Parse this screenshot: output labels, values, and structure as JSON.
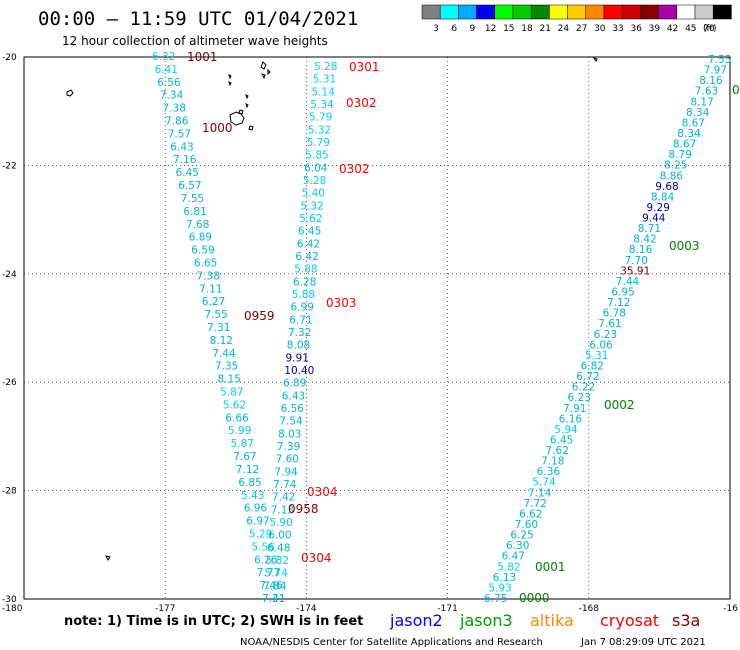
{
  "header": {
    "title": "00:00 – 11:59 UTC 01/04/2021",
    "subtitle": "12 hour collection of altimeter wave heights"
  },
  "colorbar": {
    "unit": "(ft)",
    "swatches": [
      {
        "color": "#808080",
        "label": "3"
      },
      {
        "color": "#00ffff",
        "label": "6"
      },
      {
        "color": "#00aaff",
        "label": "9"
      },
      {
        "color": "#0000ff",
        "label": "12"
      },
      {
        "color": "#00ff00",
        "label": "15"
      },
      {
        "color": "#00cc00",
        "label": "18"
      },
      {
        "color": "#008800",
        "label": "21"
      },
      {
        "color": "#ffff00",
        "label": "24"
      },
      {
        "color": "#ffcc00",
        "label": "27"
      },
      {
        "color": "#ff8800",
        "label": "30"
      },
      {
        "color": "#ff0000",
        "label": "33"
      },
      {
        "color": "#cc0000",
        "label": "36"
      },
      {
        "color": "#880000",
        "label": "39"
      },
      {
        "color": "#aa00aa",
        "label": "42"
      },
      {
        "color": "#ffffff",
        "label": "45"
      },
      {
        "color": "#cccccc",
        "label": "70"
      },
      {
        "color": "#000000",
        "label": ""
      }
    ]
  },
  "colors": {
    "cyan_text": "#00b4d8",
    "light_cyan_text": "#00d0f0",
    "navy_text": "#0000a0",
    "red_text": "#ff0000",
    "darkred_text": "#800000",
    "green_text": "#008000",
    "orange_text": "#ff8800",
    "jason2": "#0000ff",
    "jason3": "#00a000",
    "altika": "#ff8800",
    "cryosat": "#ff0000",
    "s3a": "#800000"
  },
  "axes": {
    "lat_labels": [
      {
        "lat": -20,
        "label": "-20"
      },
      {
        "lat": -22,
        "label": "-22"
      },
      {
        "lat": -24,
        "label": "-24"
      },
      {
        "lat": -26,
        "label": "-26"
      },
      {
        "lat": -28,
        "label": "-28"
      },
      {
        "lat": -30,
        "label": "-30"
      }
    ],
    "lon_labels": [
      {
        "lon": -180,
        "label": "-180"
      },
      {
        "lon": -177,
        "label": "-177"
      },
      {
        "lon": -174,
        "label": "-174"
      },
      {
        "lon": -171,
        "label": "-171"
      },
      {
        "lon": -168,
        "label": "-168"
      },
      {
        "lon": -165,
        "label": "-16"
      }
    ],
    "lat_range": [
      -30,
      -20
    ],
    "lon_range": [
      -180,
      -165
    ],
    "grid": "dotted"
  },
  "tracks": {
    "track_a": [
      {
        "v": "6.32",
        "c": "light"
      },
      {
        "v": "6.41",
        "c": "light"
      },
      {
        "v": "6.56",
        "c": "cyan"
      },
      {
        "v": "7.34",
        "c": "cyan"
      },
      {
        "v": "7.38",
        "c": "cyan"
      },
      {
        "v": "7.86",
        "c": "cyan"
      },
      {
        "v": "7.57",
        "c": "cyan"
      },
      {
        "v": "6.43",
        "c": "cyan"
      },
      {
        "v": "7.16",
        "c": "cyan"
      },
      {
        "v": "6.45",
        "c": "cyan"
      },
      {
        "v": "6.57",
        "c": "cyan"
      },
      {
        "v": "7.55",
        "c": "cyan"
      },
      {
        "v": "6.81",
        "c": "cyan"
      },
      {
        "v": "7.68",
        "c": "cyan"
      },
      {
        "v": "6.89",
        "c": "cyan"
      },
      {
        "v": "6.59",
        "c": "cyan"
      },
      {
        "v": "6.65",
        "c": "cyan"
      },
      {
        "v": "7.38",
        "c": "cyan"
      },
      {
        "v": "7.11",
        "c": "cyan"
      },
      {
        "v": "6.27",
        "c": "cyan"
      },
      {
        "v": "7.55",
        "c": "cyan"
      },
      {
        "v": "7.31",
        "c": "cyan"
      },
      {
        "v": "8.12",
        "c": "cyan"
      },
      {
        "v": "7.44",
        "c": "cyan"
      },
      {
        "v": "7.35",
        "c": "cyan"
      },
      {
        "v": "8.15",
        "c": "cyan"
      },
      {
        "v": "5.87",
        "c": "light"
      },
      {
        "v": "5.62",
        "c": "light"
      },
      {
        "v": "6.66",
        "c": "cyan"
      },
      {
        "v": "5.99",
        "c": "light"
      },
      {
        "v": "5.87",
        "c": "light"
      },
      {
        "v": "7.67",
        "c": "cyan"
      },
      {
        "v": "7.12",
        "c": "cyan"
      },
      {
        "v": "6.85",
        "c": "cyan"
      },
      {
        "v": "5.43",
        "c": "light"
      },
      {
        "v": "6.96",
        "c": "cyan"
      },
      {
        "v": "6.97",
        "c": "cyan"
      },
      {
        "v": "5.29",
        "c": "light"
      },
      {
        "v": "5.56",
        "c": "light"
      },
      {
        "v": "6.26",
        "c": "cyan"
      },
      {
        "v": "7.77",
        "c": "cyan"
      },
      {
        "v": "7.46",
        "c": "cyan"
      },
      {
        "v": "7.41",
        "c": "cyan"
      }
    ],
    "track_b": [
      {
        "v": "5.28",
        "c": "light"
      },
      {
        "v": "5.31",
        "c": "light"
      },
      {
        "v": "5.14",
        "c": "light"
      },
      {
        "v": "5.34",
        "c": "light"
      },
      {
        "v": "5.79",
        "c": "light"
      },
      {
        "v": "5.32",
        "c": "light"
      },
      {
        "v": "5.79",
        "c": "light"
      },
      {
        "v": "5.85",
        "c": "light"
      },
      {
        "v": "6.04",
        "c": "cyan"
      },
      {
        "v": "5.28",
        "c": "light"
      },
      {
        "v": "5.40",
        "c": "light"
      },
      {
        "v": "5.32",
        "c": "light"
      },
      {
        "v": "5.62",
        "c": "light"
      },
      {
        "v": "6.45",
        "c": "cyan"
      },
      {
        "v": "6.42",
        "c": "cyan"
      },
      {
        "v": "6.42",
        "c": "cyan"
      },
      {
        "v": "5.88",
        "c": "light"
      },
      {
        "v": "6.28",
        "c": "cyan"
      },
      {
        "v": "5.88",
        "c": "light"
      },
      {
        "v": "6.99",
        "c": "cyan"
      },
      {
        "v": "6.71",
        "c": "cyan"
      },
      {
        "v": "7.32",
        "c": "cyan"
      },
      {
        "v": "8.08",
        "c": "cyan"
      },
      {
        "v": "9.91",
        "c": "navy"
      },
      {
        "v": "10.40",
        "c": "navy"
      },
      {
        "v": "6.89",
        "c": "cyan"
      },
      {
        "v": "6.43",
        "c": "cyan"
      },
      {
        "v": "6.56",
        "c": "cyan"
      },
      {
        "v": "7.54",
        "c": "cyan"
      },
      {
        "v": "8.03",
        "c": "cyan"
      },
      {
        "v": "7.39",
        "c": "cyan"
      },
      {
        "v": "7.60",
        "c": "cyan"
      },
      {
        "v": "7.94",
        "c": "cyan"
      },
      {
        "v": "7.74",
        "c": "cyan"
      },
      {
        "v": "7.42",
        "c": "cyan"
      },
      {
        "v": "7.13",
        "c": "cyan"
      },
      {
        "v": "5.90",
        "c": "light"
      },
      {
        "v": "6.00",
        "c": "cyan"
      },
      {
        "v": "6.48",
        "c": "cyan"
      },
      {
        "v": "5.82",
        "c": "light"
      },
      {
        "v": "5.74",
        "c": "light"
      },
      {
        "v": "7.84",
        "c": "cyan"
      },
      {
        "v": "7.21",
        "c": "cyan"
      }
    ],
    "track_c": [
      {
        "v": "7.55",
        "c": "cyan"
      },
      {
        "v": "7.97",
        "c": "cyan"
      },
      {
        "v": "8.16",
        "c": "cyan"
      },
      {
        "v": "7.63",
        "c": "cyan"
      },
      {
        "v": "8.17",
        "c": "cyan"
      },
      {
        "v": "8.34",
        "c": "cyan"
      },
      {
        "v": "8.67",
        "c": "cyan"
      },
      {
        "v": "8.34",
        "c": "cyan"
      },
      {
        "v": "8.67",
        "c": "cyan"
      },
      {
        "v": "8.79",
        "c": "cyan"
      },
      {
        "v": "8.25",
        "c": "cyan"
      },
      {
        "v": "8.86",
        "c": "cyan"
      },
      {
        "v": "9.68",
        "c": "navy"
      },
      {
        "v": "8.84",
        "c": "cyan"
      },
      {
        "v": "9.29",
        "c": "navy"
      },
      {
        "v": "9.44",
        "c": "navy"
      },
      {
        "v": "8.71",
        "c": "cyan"
      },
      {
        "v": "8.42",
        "c": "cyan"
      },
      {
        "v": "8.16",
        "c": "cyan"
      },
      {
        "v": "7.70",
        "c": "cyan"
      },
      {
        "v": "35.91",
        "c": "darkred"
      },
      {
        "v": "7.44",
        "c": "cyan"
      },
      {
        "v": "6.95",
        "c": "cyan"
      },
      {
        "v": "7.12",
        "c": "cyan"
      },
      {
        "v": "6.78",
        "c": "cyan"
      },
      {
        "v": "7.61",
        "c": "cyan"
      },
      {
        "v": "6.23",
        "c": "cyan"
      },
      {
        "v": "6.06",
        "c": "cyan"
      },
      {
        "v": "5.31",
        "c": "light"
      },
      {
        "v": "6.82",
        "c": "cyan"
      },
      {
        "v": "6.72",
        "c": "cyan"
      },
      {
        "v": "6.22",
        "c": "cyan"
      },
      {
        "v": "6.23",
        "c": "cyan"
      },
      {
        "v": "7.91",
        "c": "cyan"
      },
      {
        "v": "6.16",
        "c": "cyan"
      },
      {
        "v": "5.94",
        "c": "light"
      },
      {
        "v": "6.45",
        "c": "cyan"
      },
      {
        "v": "7.62",
        "c": "cyan"
      },
      {
        "v": "7.18",
        "c": "cyan"
      },
      {
        "v": "6.36",
        "c": "cyan"
      },
      {
        "v": "5.74",
        "c": "light"
      },
      {
        "v": "7.14",
        "c": "cyan"
      },
      {
        "v": "7.72",
        "c": "cyan"
      },
      {
        "v": "6.62",
        "c": "cyan"
      },
      {
        "v": "7.60",
        "c": "cyan"
      },
      {
        "v": "6.25",
        "c": "cyan"
      },
      {
        "v": "6.30",
        "c": "cyan"
      },
      {
        "v": "6.47",
        "c": "cyan"
      },
      {
        "v": "5.82",
        "c": "light"
      },
      {
        "v": "6.13",
        "c": "cyan"
      },
      {
        "v": "5.93",
        "c": "light"
      },
      {
        "v": "6.75",
        "c": "cyan"
      }
    ]
  },
  "time_tags": [
    {
      "id": "tag-1001",
      "text": "1001",
      "c": "darkred"
    },
    {
      "id": "tag-1000",
      "text": "1000",
      "c": "darkred"
    },
    {
      "id": "tag-0959",
      "text": "0959",
      "c": "darkred"
    },
    {
      "id": "tag-0958",
      "text": "0958",
      "c": "darkred"
    },
    {
      "id": "tag-0301",
      "text": "0301",
      "c": "red"
    },
    {
      "id": "tag-0302a",
      "text": "0302",
      "c": "red"
    },
    {
      "id": "tag-0302b",
      "text": "0302",
      "c": "red"
    },
    {
      "id": "tag-0303",
      "text": "0303",
      "c": "red"
    },
    {
      "id": "tag-0304a",
      "text": "0304",
      "c": "red"
    },
    {
      "id": "tag-0304b",
      "text": "0304",
      "c": "red"
    },
    {
      "id": "tag-0003",
      "text": "0003",
      "c": "green"
    },
    {
      "id": "tag-0002",
      "text": "0002",
      "c": "green"
    },
    {
      "id": "tag-0001",
      "text": "0001",
      "c": "green"
    },
    {
      "id": "tag-0000",
      "text": "0000",
      "c": "green"
    },
    {
      "id": "tag-0",
      "text": "0",
      "c": "green"
    }
  ],
  "footer": {
    "note": "note: 1) Time is in UTC; 2) SWH is in feet",
    "legend": [
      {
        "name": "jason2",
        "color": "#0000ff"
      },
      {
        "name": "jason3",
        "color": "#00a000"
      },
      {
        "name": "altika",
        "color": "#ff8800"
      },
      {
        "name": "cryosat",
        "color": "#ff0000"
      },
      {
        "name": "s3a",
        "color": "#800000"
      }
    ],
    "credit": "NOAA/NESDIS Center for Satellite Applications and Research",
    "generated": "Jan  7 08:29:09 UTC 2021"
  }
}
